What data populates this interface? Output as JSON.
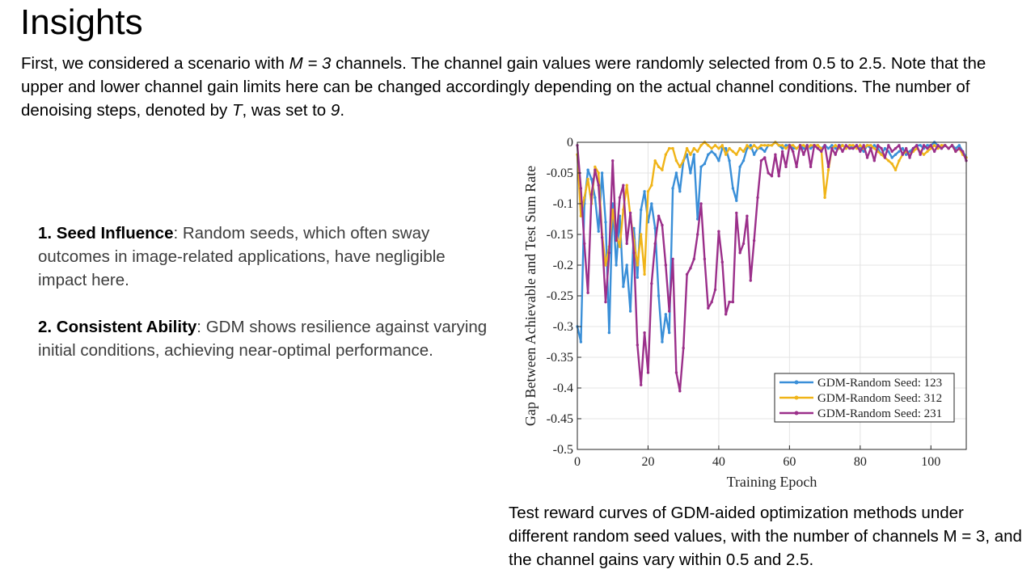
{
  "slide": {
    "title": "Insights",
    "intro": {
      "s1": "First, we considered a scenario with ",
      "m_eq": "M = 3",
      "s2": " channels. The channel gain values were randomly selected from 0.5 to 2.5. Note that the upper and lower channel gain limits here can be changed accordingly depending on the actual channel conditions. The number of denoising steps, denoted by ",
      "t_sym": "T",
      "s3": ", was set to ",
      "t_val": "9",
      "s4": "."
    },
    "points": [
      {
        "title": "1. Seed Influence",
        "text": ": Random seeds, which often sway outcomes in image-related applications, have negligible impact here."
      },
      {
        "title": "2. Consistent Ability",
        "text": ": GDM shows resilience against varying initial conditions, achieving near-optimal performance."
      }
    ],
    "caption": "Test reward curves of GDM-aided optimization methods under different random seed values, with the number of channels M = 3, and the channel gains vary within 0.5 and 2.5."
  },
  "chart_data": {
    "type": "line",
    "xlabel": "Training Epoch",
    "ylabel": "Gap Between Achievable and Test Sum Rate",
    "xlim": [
      0,
      110
    ],
    "ylim": [
      -0.5,
      0
    ],
    "xticks": [
      0,
      20,
      40,
      60,
      80,
      100
    ],
    "yticks": [
      0,
      -0.05,
      -0.1,
      -0.15,
      -0.2,
      -0.25,
      -0.3,
      -0.35,
      -0.4,
      -0.45,
      -0.5
    ],
    "ytick_labels": [
      "0",
      "-0.05",
      "-0.1",
      "-0.15",
      "-0.2",
      "-0.25",
      "-0.3",
      "-0.35",
      "-0.4",
      "-0.45",
      "-0.5"
    ],
    "grid": true,
    "legend_position": "bottom-right",
    "series": [
      {
        "name": "GDM-Random Seed: 123",
        "color": "#3a8fd8",
        "x": [
          0,
          1,
          2,
          3,
          4,
          5,
          6,
          7,
          8,
          9,
          10,
          11,
          12,
          13,
          14,
          15,
          16,
          17,
          18,
          19,
          20,
          21,
          22,
          23,
          24,
          25,
          26,
          27,
          28,
          29,
          30,
          31,
          32,
          33,
          34,
          35,
          36,
          37,
          38,
          39,
          40,
          41,
          42,
          43,
          44,
          45,
          46,
          47,
          48,
          49,
          50,
          51,
          52,
          53,
          54,
          55,
          56,
          57,
          58,
          59,
          60,
          61,
          62,
          63,
          64,
          65,
          66,
          67,
          68,
          69,
          70,
          71,
          72,
          73,
          74,
          75,
          76,
          77,
          78,
          79,
          80,
          81,
          82,
          83,
          84,
          85,
          86,
          87,
          88,
          89,
          90,
          91,
          92,
          93,
          94,
          95,
          96,
          97,
          98,
          99,
          100,
          101,
          102,
          103,
          104,
          105,
          106,
          107,
          108,
          109,
          110
        ],
        "y": [
          -0.3,
          -0.325,
          -0.1,
          -0.045,
          -0.06,
          -0.09,
          -0.145,
          -0.05,
          -0.13,
          -0.31,
          -0.1,
          -0.2,
          -0.12,
          -0.235,
          -0.2,
          -0.275,
          -0.14,
          -0.22,
          -0.11,
          -0.08,
          -0.13,
          -0.1,
          -0.14,
          -0.25,
          -0.325,
          -0.28,
          -0.31,
          -0.075,
          -0.05,
          -0.08,
          -0.03,
          -0.02,
          -0.05,
          -0.02,
          -0.125,
          -0.04,
          -0.035,
          -0.02,
          -0.015,
          -0.02,
          -0.03,
          -0.01,
          -0.01,
          -0.03,
          -0.075,
          -0.095,
          -0.04,
          -0.03,
          -0.01,
          -0.005,
          -0.02,
          -0.01,
          -0.01,
          -0.015,
          -0.005,
          -0.005,
          0,
          -0.005,
          -0.01,
          -0.005,
          -0.005,
          -0.01,
          -0.01,
          -0.005,
          -0.01,
          -0.005,
          -0.01,
          -0.005,
          -0.005,
          -0.01,
          -0.005,
          -0.01,
          -0.005,
          -0.01,
          -0.005,
          -0.005,
          -0.01,
          -0.005,
          -0.01,
          -0.005,
          -0.01,
          -0.015,
          -0.005,
          -0.01,
          -0.005,
          -0.01,
          -0.02,
          -0.01,
          -0.015,
          -0.025,
          -0.02,
          -0.015,
          -0.01,
          -0.02,
          -0.015,
          -0.01,
          -0.005,
          -0.005,
          -0.01,
          -0.005,
          -0.005,
          0,
          -0.005,
          -0.01,
          -0.005,
          -0.01,
          -0.005,
          -0.01,
          -0.005,
          -0.015,
          -0.025
        ]
      },
      {
        "name": "GDM-Random Seed: 312",
        "color": "#f0b418",
        "x": [
          0,
          1,
          2,
          3,
          4,
          5,
          6,
          7,
          8,
          9,
          10,
          11,
          12,
          13,
          14,
          15,
          16,
          17,
          18,
          19,
          20,
          21,
          22,
          23,
          24,
          25,
          26,
          27,
          28,
          29,
          30,
          31,
          32,
          33,
          34,
          35,
          36,
          37,
          38,
          39,
          40,
          41,
          42,
          43,
          44,
          45,
          46,
          47,
          48,
          49,
          50,
          51,
          52,
          53,
          54,
          55,
          56,
          57,
          58,
          59,
          60,
          61,
          62,
          63,
          64,
          65,
          66,
          67,
          68,
          69,
          70,
          71,
          72,
          73,
          74,
          75,
          76,
          77,
          78,
          79,
          80,
          81,
          82,
          83,
          84,
          85,
          86,
          87,
          88,
          89,
          90,
          91,
          92,
          93,
          94,
          95,
          96,
          97,
          98,
          99,
          100,
          101,
          102,
          103,
          104,
          105,
          106,
          107,
          108,
          109,
          110
        ],
        "y": [
          -0.02,
          -0.12,
          -0.09,
          -0.06,
          -0.1,
          -0.04,
          -0.05,
          -0.15,
          -0.2,
          -0.17,
          -0.11,
          -0.15,
          -0.17,
          -0.11,
          -0.07,
          -0.12,
          -0.16,
          -0.2,
          -0.15,
          -0.215,
          -0.08,
          -0.07,
          -0.03,
          -0.04,
          -0.045,
          -0.02,
          -0.01,
          -0.01,
          -0.03,
          -0.04,
          -0.03,
          -0.01,
          -0.02,
          -0.01,
          -0.015,
          -0.005,
          0,
          -0.005,
          -0.01,
          -0.005,
          -0.01,
          -0.005,
          -0.02,
          -0.01,
          -0.015,
          -0.02,
          -0.01,
          -0.015,
          -0.005,
          -0.01,
          -0.005,
          -0.01,
          -0.005,
          -0.005,
          -0.005,
          -0.005,
          0,
          -0.005,
          -0.005,
          -0.01,
          -0.005,
          -0.005,
          -0.01,
          -0.005,
          -0.005,
          -0.01,
          -0.005,
          -0.005,
          -0.005,
          -0.01,
          -0.09,
          -0.045,
          -0.01,
          -0.005,
          -0.01,
          -0.005,
          -0.01,
          -0.005,
          -0.005,
          -0.01,
          -0.005,
          -0.01,
          -0.005,
          -0.005,
          -0.01,
          -0.015,
          -0.02,
          -0.025,
          -0.03,
          -0.035,
          -0.045,
          -0.03,
          -0.02,
          -0.015,
          -0.02,
          -0.015,
          -0.01,
          -0.015,
          -0.02,
          -0.015,
          -0.01,
          -0.005,
          -0.01,
          -0.005,
          -0.005,
          -0.01,
          -0.005,
          -0.015,
          -0.01,
          -0.02,
          -0.025
        ]
      },
      {
        "name": "GDM-Random Seed: 231",
        "color": "#9b2f8a",
        "x": [
          0,
          1,
          2,
          3,
          4,
          5,
          6,
          7,
          8,
          9,
          10,
          11,
          12,
          13,
          14,
          15,
          16,
          17,
          18,
          19,
          20,
          21,
          22,
          23,
          24,
          25,
          26,
          27,
          28,
          29,
          30,
          31,
          32,
          33,
          34,
          35,
          36,
          37,
          38,
          39,
          40,
          41,
          42,
          43,
          44,
          45,
          46,
          47,
          48,
          49,
          50,
          51,
          52,
          53,
          54,
          55,
          56,
          57,
          58,
          59,
          60,
          61,
          62,
          63,
          64,
          65,
          66,
          67,
          68,
          69,
          70,
          71,
          72,
          73,
          74,
          75,
          76,
          77,
          78,
          79,
          80,
          81,
          82,
          83,
          84,
          85,
          86,
          87,
          88,
          89,
          90,
          91,
          92,
          93,
          94,
          95,
          96,
          97,
          98,
          99,
          100,
          101,
          102,
          103,
          104,
          105,
          106,
          107,
          108,
          109,
          110
        ],
        "y": [
          -0.005,
          -0.075,
          -0.165,
          -0.245,
          -0.085,
          -0.045,
          -0.07,
          -0.155,
          -0.26,
          -0.18,
          -0.03,
          -0.16,
          -0.09,
          -0.07,
          -0.165,
          -0.115,
          -0.18,
          -0.33,
          -0.395,
          -0.31,
          -0.375,
          -0.23,
          -0.165,
          -0.12,
          -0.135,
          -0.2,
          -0.275,
          -0.19,
          -0.375,
          -0.405,
          -0.335,
          -0.215,
          -0.205,
          -0.19,
          -0.15,
          -0.1,
          -0.19,
          -0.27,
          -0.26,
          -0.24,
          -0.145,
          -0.195,
          -0.28,
          -0.26,
          -0.26,
          -0.115,
          -0.18,
          -0.165,
          -0.12,
          -0.225,
          -0.16,
          -0.09,
          -0.03,
          -0.025,
          -0.05,
          -0.055,
          -0.02,
          -0.055,
          -0.015,
          -0.04,
          -0.005,
          -0.015,
          -0.04,
          -0.005,
          -0.02,
          -0.005,
          -0.04,
          -0.005,
          -0.01,
          -0.015,
          -0.005,
          -0.04,
          -0.01,
          -0.02,
          -0.005,
          -0.015,
          -0.005,
          -0.01,
          -0.01,
          -0.005,
          -0.015,
          -0.005,
          -0.025,
          -0.01,
          -0.03,
          -0.005,
          -0.01,
          -0.025,
          -0.005,
          -0.015,
          -0.01,
          -0.005,
          -0.02,
          -0.01,
          -0.025,
          -0.01,
          -0.005,
          -0.02,
          -0.005,
          -0.01,
          -0.005,
          -0.015,
          -0.005,
          -0.01,
          -0.005,
          -0.01,
          -0.005,
          -0.015,
          -0.01,
          -0.015,
          -0.03
        ]
      }
    ]
  }
}
